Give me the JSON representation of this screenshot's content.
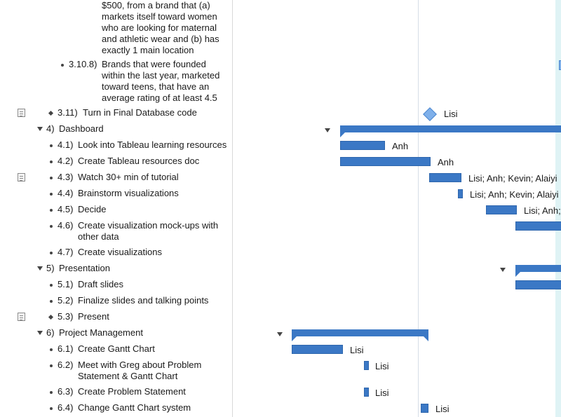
{
  "outline": {
    "rows": [
      {
        "num": "",
        "title": "$500, from a brand that (a) markets itself toward women who are looking for maternal and athletic wear and (b) has exactly 1 main location"
      },
      {
        "num": "3.10.8)",
        "title": "Brands that were founded within the last year, marketed toward teens, that have an average rating of at least 4.5"
      },
      {
        "num": "3.11)",
        "title": "Turn in Final Database code"
      },
      {
        "num": "4)",
        "title": "Dashboard"
      },
      {
        "num": "4.1)",
        "title": "Look into Tableau learning resources"
      },
      {
        "num": "4.2)",
        "title": "Create Tableau resources doc"
      },
      {
        "num": "4.3)",
        "title": "Watch 30+ min of tutorial"
      },
      {
        "num": "4.4)",
        "title": "Brainstorm visualizations"
      },
      {
        "num": "4.5)",
        "title": "Decide"
      },
      {
        "num": "4.6)",
        "title": "Create visualization mock-ups with other data"
      },
      {
        "num": "4.7)",
        "title": "Create visualizations"
      },
      {
        "num": "5)",
        "title": "Presentation"
      },
      {
        "num": "5.1)",
        "title": "Draft slides"
      },
      {
        "num": "5.2)",
        "title": "Finalize slides and talking points"
      },
      {
        "num": "5.3)",
        "title": "Present"
      },
      {
        "num": "6)",
        "title": "Project Management"
      },
      {
        "num": "6.1)",
        "title": "Create Gantt Chart"
      },
      {
        "num": "6.2)",
        "title": "Meet with Greg about Problem Statement & Gantt Chart"
      },
      {
        "num": "6.3)",
        "title": "Create Problem Statement"
      },
      {
        "num": "6.4)",
        "title": "Change Gantt Chart system"
      }
    ]
  },
  "gantt": {
    "labels": {
      "r3_11": "Lisi",
      "r4_1": "Anh",
      "r4_2": "Anh",
      "r4_3": "Lisi; Anh; Kevin; Alaiyi",
      "r4_4": "Lisi; Anh; Kevin; Alaiyi",
      "r4_5": "Lisi; Anh;",
      "r6_1": "Lisi",
      "r6_2": "Lisi",
      "r6_3": "Lisi",
      "r6_4": "Lisi"
    }
  },
  "colors": {
    "bar": "#3b78c5",
    "milestone": "#7fb0ea",
    "weekend": "#dff3f5"
  },
  "icons": {
    "note": "note-icon",
    "disclosure": "disclosure-triangle-icon",
    "milestone": "milestone-diamond-icon"
  }
}
